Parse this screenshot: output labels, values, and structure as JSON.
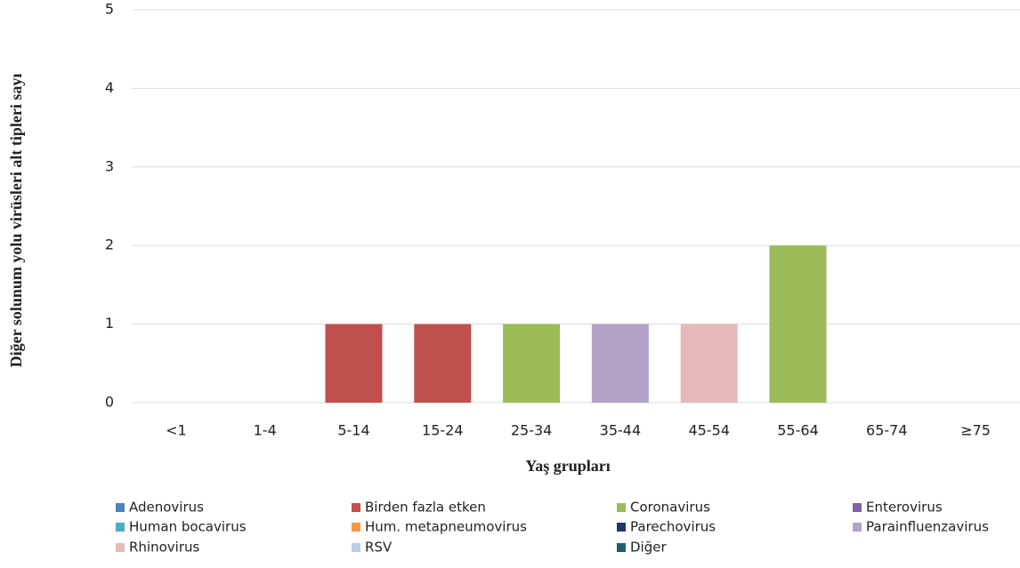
{
  "chart_data": {
    "type": "stacked_bar",
    "y_label": "Diğer solunum yolu virüsleri alt tipleri sayı",
    "x_label": "Yaş grupları",
    "categories": [
      "<1",
      "1-4",
      "5-14",
      "15-24",
      "25-34",
      "35-44",
      "45-54",
      "55-64",
      "65-74",
      "≥75"
    ],
    "series": [
      {
        "name": "Adenovirus",
        "color": "#4f81bd",
        "values": [
          0,
          0,
          0,
          0,
          0,
          0,
          0,
          0,
          0,
          0
        ]
      },
      {
        "name": "Birden fazla etken",
        "color": "#c0504d",
        "values": [
          0,
          0,
          1,
          1,
          0,
          0,
          0,
          0,
          0,
          0
        ]
      },
      {
        "name": "Coronavirus",
        "color": "#9bbb59",
        "values": [
          0,
          0,
          0,
          0,
          1,
          0,
          0,
          2,
          0,
          0
        ]
      },
      {
        "name": "Enterovirus",
        "color": "#8064a2",
        "values": [
          0,
          0,
          0,
          0,
          0,
          0,
          0,
          0,
          0,
          0
        ]
      },
      {
        "name": "Human bocavirus",
        "color": "#4bacc6",
        "values": [
          0,
          0,
          0,
          0,
          0,
          0,
          0,
          0,
          0,
          0
        ]
      },
      {
        "name": "Hum. metapneumovirus",
        "color": "#f79646",
        "values": [
          0,
          0,
          0,
          0,
          0,
          0,
          0,
          0,
          0,
          0
        ]
      },
      {
        "name": "Parechovirus",
        "color": "#1f3864",
        "values": [
          0,
          0,
          0,
          0,
          0,
          0,
          0,
          0,
          0,
          0
        ]
      },
      {
        "name": "Parainfluenzavirus",
        "color": "#b3a2c7",
        "values": [
          0,
          0,
          0,
          0,
          0,
          1,
          0,
          0,
          0,
          0
        ]
      },
      {
        "name": "Rhinovirus",
        "color": "#e6b9b8",
        "values": [
          0,
          0,
          0,
          0,
          0,
          0,
          1,
          0,
          0,
          0
        ]
      },
      {
        "name": "RSV",
        "color": "#b9cde5",
        "values": [
          0,
          0,
          0,
          0,
          0,
          0,
          0,
          0,
          0,
          0
        ]
      },
      {
        "name": "Diğer",
        "color": "#215f6b",
        "values": [
          0,
          0,
          0,
          0,
          0,
          0,
          0,
          0,
          0,
          0
        ]
      }
    ],
    "ylim": [
      0,
      5
    ],
    "yticks": [
      0,
      1,
      2,
      3,
      4,
      5
    ],
    "grid": true
  }
}
